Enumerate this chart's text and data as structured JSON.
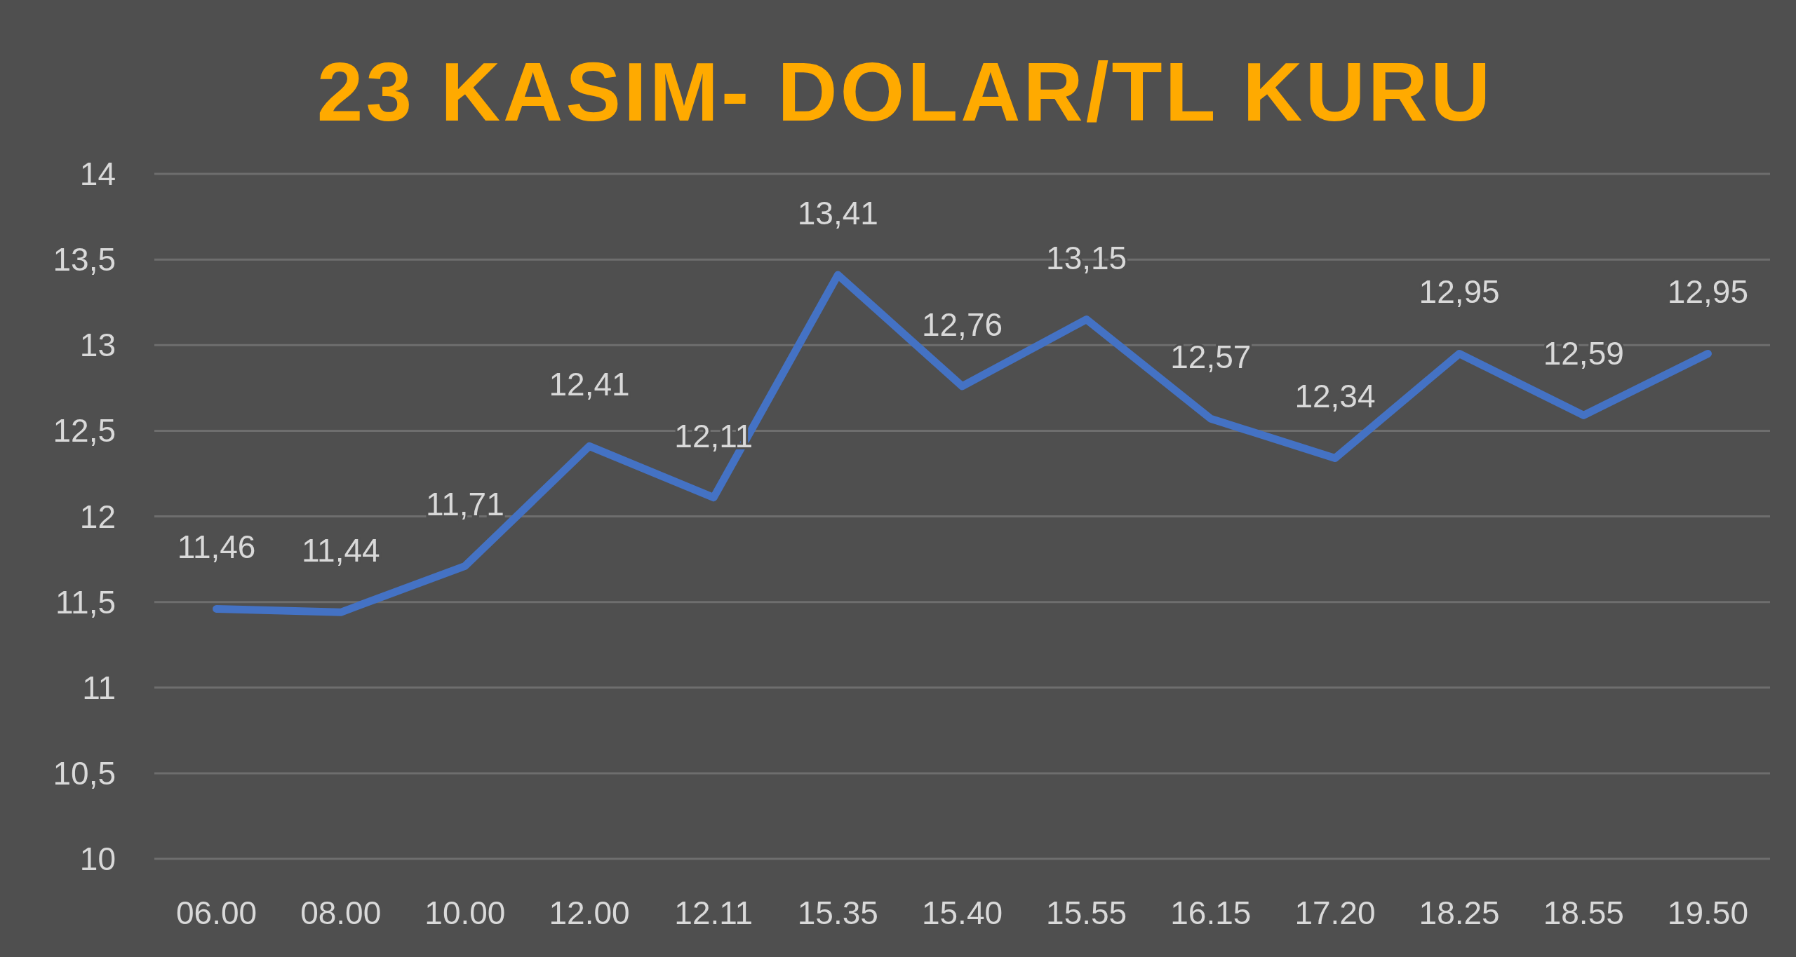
{
  "chart_data": {
    "type": "line",
    "title": "23 KASIM- DOLAR/TL KURU",
    "categories": [
      "06.00",
      "08.00",
      "10.00",
      "12.00",
      "12.11",
      "15.35",
      "15.40",
      "15.55",
      "16.15",
      "17.20",
      "18.25",
      "18.55",
      "19.50"
    ],
    "series": [
      {
        "color": "#4472c4",
        "values": [
          11.46,
          11.44,
          11.71,
          12.41,
          12.11,
          13.41,
          12.76,
          13.15,
          12.57,
          12.34,
          12.95,
          12.59,
          12.95
        ],
        "value_labels": [
          "11,46",
          "11,44",
          "11,71",
          "12,41",
          "12,11",
          "13,41",
          "12,76",
          "13,15",
          "12,57",
          "12,34",
          "12,95",
          "12,59",
          "12,95"
        ]
      }
    ],
    "ylim": [
      10,
      14
    ],
    "yticks": [
      10,
      {
        "value": 10.5,
        "label": "10,5"
      },
      11,
      {
        "value": 11.5,
        "label": "11,5"
      },
      12,
      {
        "value": 12.5,
        "label": "12,5"
      },
      13,
      {
        "value": 13.5,
        "label": "13,5"
      },
      14
    ],
    "grid": "y",
    "marker": "none",
    "line_style": "solid"
  }
}
